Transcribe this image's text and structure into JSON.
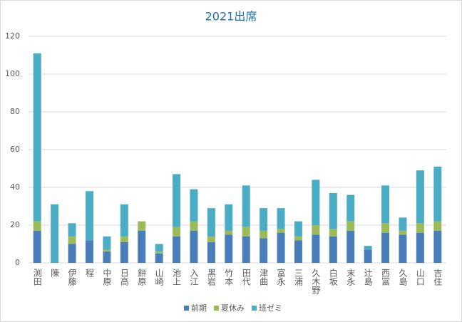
{
  "chart_data": {
    "type": "stacked_bar",
    "title": "2021出席",
    "categories": [
      "渕田",
      "陳",
      "伊藤",
      "程",
      "中原",
      "日高",
      "餅原",
      "山崎",
      "池上",
      "入江",
      "黒岩",
      "竹本",
      "田代",
      "津曲",
      "富永",
      "三浦",
      "久木野",
      "白坂",
      "末永",
      "辻島",
      "西冨",
      "久島",
      "山口",
      "吉住"
    ],
    "series": [
      {
        "name": "前期",
        "color": "#4a7ebb",
        "values": [
          17,
          0,
          10,
          12,
          6,
          11,
          17,
          5,
          14,
          17,
          11,
          15,
          14,
          13,
          16,
          12,
          15,
          14,
          17,
          7,
          16,
          15,
          16,
          17
        ]
      },
      {
        "name": "夏休み",
        "color": "#9bbb59",
        "values": [
          5,
          0,
          4,
          0,
          1,
          3,
          5,
          1,
          5,
          5,
          3,
          2,
          5,
          4,
          2,
          2,
          5,
          4,
          5,
          0,
          5,
          2,
          5,
          5
        ]
      },
      {
        "name": "班ゼミ",
        "color": "#4bacc6",
        "values": [
          89,
          31,
          7,
          26,
          7,
          17,
          0,
          4,
          28,
          17,
          15,
          14,
          22,
          12,
          11,
          8,
          24,
          19,
          14,
          2,
          20,
          7,
          28,
          29
        ]
      }
    ],
    "ylim": [
      0,
      120
    ],
    "yticks": [
      0,
      20,
      40,
      60,
      80,
      100,
      120
    ],
    "grid": true,
    "legend": "bottom"
  }
}
